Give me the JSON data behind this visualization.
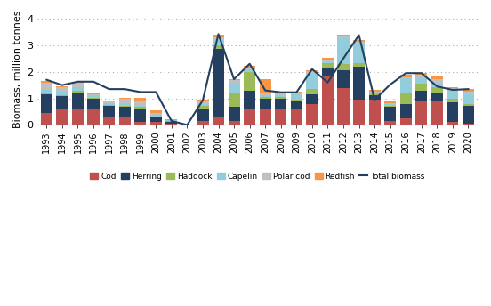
{
  "years": [
    1993,
    1994,
    1995,
    1996,
    1997,
    1998,
    1999,
    2000,
    2001,
    2002,
    2003,
    2004,
    2005,
    2006,
    2007,
    2008,
    2009,
    2010,
    2011,
    2012,
    2013,
    2014,
    2015,
    2016,
    2017,
    2018,
    2019,
    2020
  ],
  "cod": [
    0.45,
    0.62,
    0.62,
    0.6,
    0.28,
    0.28,
    0.1,
    0.1,
    0.05,
    0.0,
    0.15,
    0.3,
    0.15,
    0.6,
    0.6,
    0.62,
    0.6,
    0.78,
    1.85,
    1.4,
    0.95,
    0.95,
    0.15,
    0.25,
    0.9,
    0.9,
    0.1,
    0.06
  ],
  "herring": [
    0.7,
    0.45,
    0.58,
    0.38,
    0.43,
    0.4,
    0.52,
    0.18,
    0.08,
    0.0,
    0.48,
    2.55,
    0.55,
    0.68,
    0.38,
    0.35,
    0.28,
    0.38,
    0.28,
    0.65,
    1.25,
    0.18,
    0.55,
    0.55,
    0.38,
    0.3,
    0.75,
    0.65
  ],
  "haddock": [
    0.05,
    0.05,
    0.08,
    0.05,
    0.05,
    0.05,
    0.05,
    0.05,
    0.02,
    0.0,
    0.08,
    0.15,
    0.5,
    0.7,
    0.08,
    0.08,
    0.08,
    0.18,
    0.18,
    0.25,
    0.12,
    0.05,
    0.02,
    0.4,
    0.28,
    0.22,
    0.15,
    0.08
  ],
  "capelin": [
    0.15,
    0.12,
    0.15,
    0.08,
    0.05,
    0.08,
    0.05,
    0.05,
    0.02,
    0.0,
    0.08,
    0.2,
    0.4,
    0.12,
    0.05,
    0.05,
    0.18,
    0.58,
    0.05,
    0.95,
    0.75,
    0.05,
    0.05,
    0.55,
    0.22,
    0.15,
    0.28,
    0.35
  ],
  "polar_cod": [
    0.25,
    0.18,
    0.15,
    0.06,
    0.06,
    0.16,
    0.15,
    0.07,
    0.01,
    0.0,
    0.1,
    0.1,
    0.08,
    0.06,
    0.12,
    0.08,
    0.08,
    0.1,
    0.1,
    0.08,
    0.05,
    0.03,
    0.05,
    0.05,
    0.12,
    0.15,
    0.1,
    0.12
  ],
  "redfish": [
    0.05,
    0.05,
    0.05,
    0.05,
    0.05,
    0.05,
    0.15,
    0.09,
    0.02,
    0.0,
    0.05,
    0.1,
    0.05,
    0.05,
    0.48,
    0.05,
    0.05,
    0.05,
    0.05,
    0.08,
    0.08,
    0.05,
    0.1,
    0.08,
    0.05,
    0.12,
    0.05,
    0.08
  ],
  "total_biomass": [
    1.7,
    1.5,
    1.63,
    1.63,
    1.35,
    1.35,
    1.24,
    1.24,
    0.15,
    0.0,
    0.93,
    3.42,
    1.72,
    2.3,
    1.3,
    1.23,
    1.23,
    2.1,
    1.6,
    2.5,
    3.38,
    0.95,
    1.52,
    1.95,
    1.95,
    1.45,
    1.32,
    1.35
  ],
  "colors": {
    "cod": "#C0504D",
    "herring": "#243F60",
    "haddock": "#9BBB59",
    "capelin": "#92CDDC",
    "polar_cod": "#C0C0C0",
    "redfish": "#F79646",
    "total_biomass": "#243F60"
  },
  "ylabel": "Biomass, million tonnes",
  "ylim": [
    0,
    4.2
  ],
  "yticks": [
    0,
    1,
    2,
    3,
    4
  ]
}
